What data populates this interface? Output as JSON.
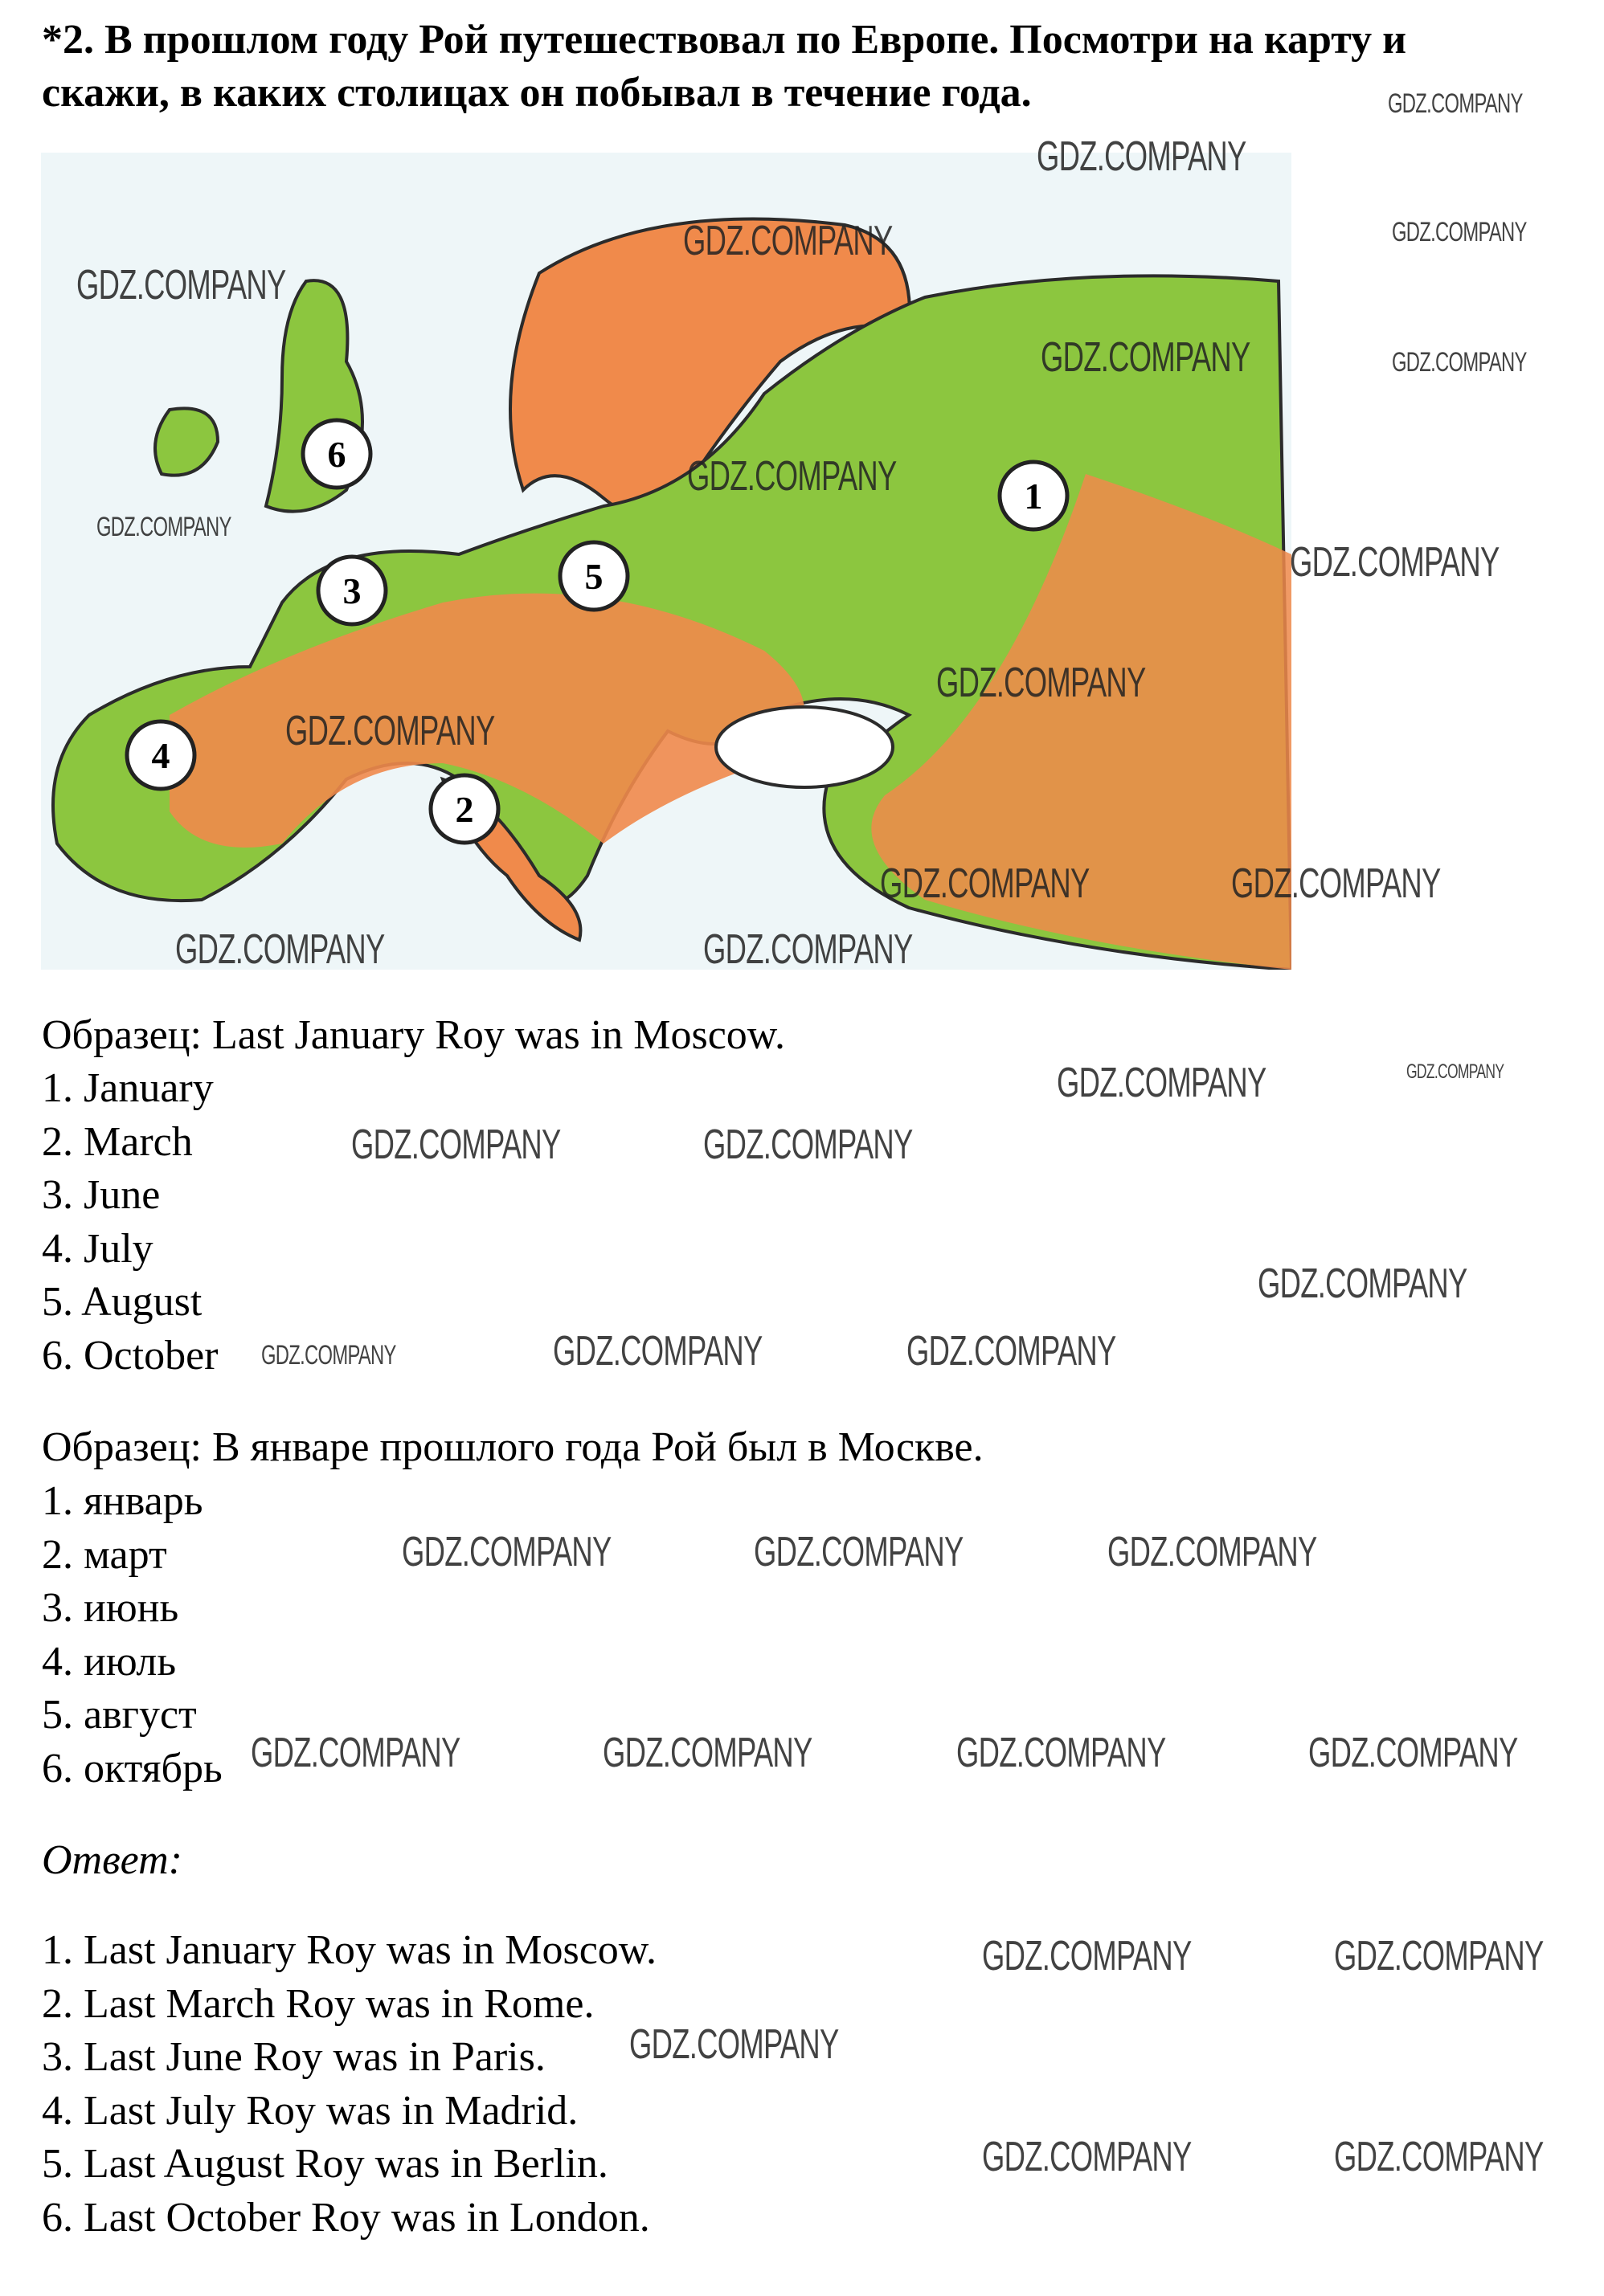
{
  "task": {
    "title_line1": "*2. В прошлом году Рой путешествовал по Европе. Посмотри на карту и",
    "title_line2": "скажи, в каких столицах он побывал в течение года."
  },
  "map": {
    "markers": [
      "1",
      "2",
      "3",
      "4",
      "5",
      "6"
    ],
    "colors": {
      "water": "#4aa6d8",
      "lowland": "#8cc63f",
      "upland": "#f08a4b",
      "coast": "#2b2b2b"
    }
  },
  "english": {
    "sample": "Образец: Last January Roy was in Moscow.",
    "items": [
      "1. January",
      "2. March",
      "3. June",
      "4. July",
      "5. August",
      "6. October"
    ]
  },
  "russian": {
    "sample": "Образец: В январе прошлого года Рой был в Москве.",
    "items": [
      "1. январь",
      "2. март",
      "3. июнь",
      "4. июль",
      "5. август",
      "6. октябрь"
    ]
  },
  "answer": {
    "label": "Ответ:",
    "items": [
      "1. Last January Roy was in Moscow.",
      "2. Last March Roy was in Rome.",
      "3. Last June Roy was in Paris.",
      "4. Last July Roy was in Madrid.",
      "5. Last August Roy was in Berlin.",
      "6. Last October Roy was in London."
    ]
  },
  "watermark": "GDZ.COMPANY"
}
